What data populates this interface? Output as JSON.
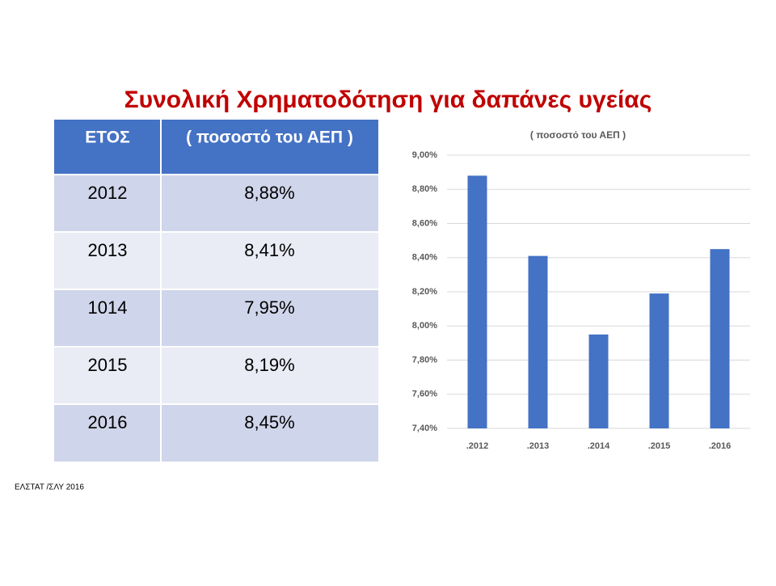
{
  "title": "Συνολική Χρηματοδότηση για δαπάνες υγείας",
  "table": {
    "header": [
      "ΕΤΟΣ",
      "( ποσοστό του ΑΕΠ )"
    ],
    "rows": [
      [
        "2012",
        "8,88%"
      ],
      [
        "2013",
        "8,41%"
      ],
      [
        "1014",
        "7,95%"
      ],
      [
        "2015",
        "8,19%"
      ],
      [
        "2016",
        "8,45%"
      ]
    ]
  },
  "source": "ΕΛΣΤΑΤ /ΣΛΥ 2016",
  "chart_data": {
    "type": "bar",
    "title": "( ποσοστό του ΑΕΠ )",
    "categories": [
      ".2012",
      ".2013",
      ".2014",
      ".2015",
      ".2016"
    ],
    "values": [
      8.88,
      8.41,
      7.95,
      8.19,
      8.45
    ],
    "color": "#4472c4",
    "ylim": [
      7.4,
      9.0
    ],
    "yticks": [
      {
        "value": 7.4,
        "label": "7,40%"
      },
      {
        "value": 7.6,
        "label": "7,60%"
      },
      {
        "value": 7.8,
        "label": "7,80%"
      },
      {
        "value": 8.0,
        "label": "8,00%"
      },
      {
        "value": 8.2,
        "label": "8,20%"
      },
      {
        "value": 8.4,
        "label": "8,40%"
      },
      {
        "value": 8.6,
        "label": "8,60%"
      },
      {
        "value": 8.8,
        "label": "8,80%"
      },
      {
        "value": 9.0,
        "label": "9,00%"
      }
    ],
    "grid": true
  }
}
